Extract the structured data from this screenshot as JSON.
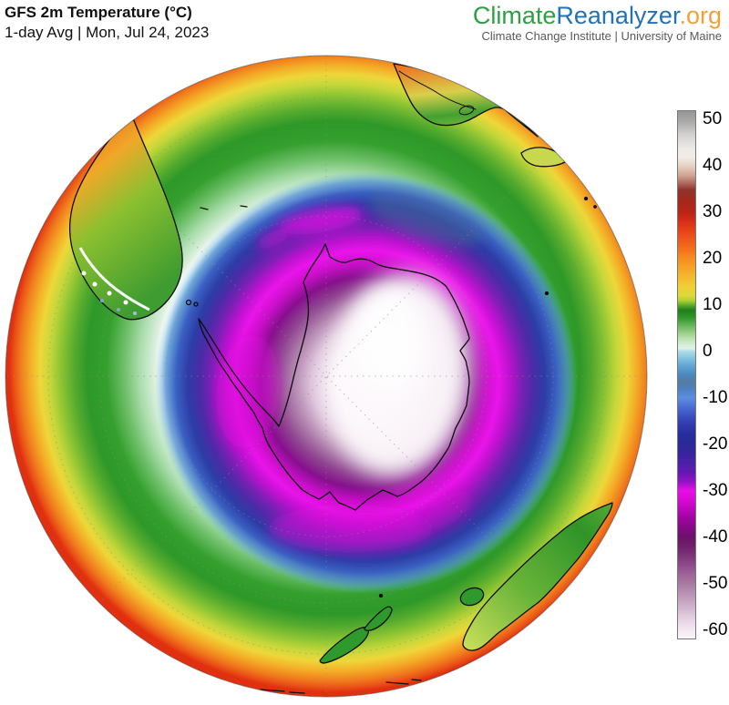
{
  "header": {
    "title": "GFS 2m Temperature (°C)",
    "subtitle": "1-day Avg | Mon, Jul 24, 2023"
  },
  "brand": {
    "climate": "Climate",
    "reanalyzer": "Reanalyzer",
    "org": ".org",
    "tagline": "Climate Change Institute | University of Maine",
    "climate_color": "#2f9e44",
    "reanalyzer_color": "#2272b5",
    "org_color": "#f0a23a",
    "tagline_color": "#58595b"
  },
  "colorbar": {
    "ticks": [
      50,
      40,
      30,
      20,
      10,
      0,
      -10,
      -20,
      -30,
      -40,
      -50,
      -60
    ],
    "top_value": 52,
    "bottom_value": -62,
    "gradient": [
      {
        "v": 52,
        "c": "#969696"
      },
      {
        "v": 50,
        "c": "#a8a6a6"
      },
      {
        "v": 47,
        "c": "#d2d0ce"
      },
      {
        "v": 44,
        "c": "#eceae6"
      },
      {
        "v": 42,
        "c": "#f2ece6"
      },
      {
        "v": 40,
        "c": "#e6cfc0"
      },
      {
        "v": 38,
        "c": "#cda092"
      },
      {
        "v": 36,
        "c": "#a65a50"
      },
      {
        "v": 35,
        "c": "#8e352b"
      },
      {
        "v": 33,
        "c": "#a02a1c"
      },
      {
        "v": 30,
        "c": "#bb2416"
      },
      {
        "v": 28,
        "c": "#d93016"
      },
      {
        "v": 25,
        "c": "#ee4f1a"
      },
      {
        "v": 22,
        "c": "#f4721c"
      },
      {
        "v": 20,
        "c": "#f68e20"
      },
      {
        "v": 17,
        "c": "#f5b02b"
      },
      {
        "v": 14,
        "c": "#f0cf36"
      },
      {
        "v": 12,
        "c": "#dcd93b"
      },
      {
        "v": 11,
        "c": "#accf33"
      },
      {
        "v": 10,
        "c": "#5aa82a"
      },
      {
        "v": 9,
        "c": "#1e7f1c"
      },
      {
        "v": 7.5,
        "c": "#2e9428"
      },
      {
        "v": 6,
        "c": "#5cb04e"
      },
      {
        "v": 4.5,
        "c": "#8cc97c"
      },
      {
        "v": 3,
        "c": "#b8dfaa"
      },
      {
        "v": 1.5,
        "c": "#d6edd4"
      },
      {
        "v": 0.7,
        "c": "#e0f1ea"
      },
      {
        "v": 0,
        "c": "#a9dae8"
      },
      {
        "v": -1.5,
        "c": "#82c2de"
      },
      {
        "v": -3,
        "c": "#62a6d2"
      },
      {
        "v": -5,
        "c": "#4b88c0"
      },
      {
        "v": -6.5,
        "c": "#547c9e"
      },
      {
        "v": -8,
        "c": "#4e7fc2"
      },
      {
        "v": -10,
        "c": "#5b8ede"
      },
      {
        "v": -12,
        "c": "#4a6cd4"
      },
      {
        "v": -14,
        "c": "#3b4ec0"
      },
      {
        "v": -16,
        "c": "#2f38ac"
      },
      {
        "v": -18,
        "c": "#282c9c"
      },
      {
        "v": -20,
        "c": "#2a2a96"
      },
      {
        "v": -22,
        "c": "#38239e"
      },
      {
        "v": -24,
        "c": "#4a21a8"
      },
      {
        "v": -26,
        "c": "#6318b2"
      },
      {
        "v": -28,
        "c": "#9012c4"
      },
      {
        "v": -30,
        "c": "#e80ee8"
      },
      {
        "v": -32,
        "c": "#d808d8"
      },
      {
        "v": -34,
        "c": "#bc06bc"
      },
      {
        "v": -36,
        "c": "#a004a0"
      },
      {
        "v": -38,
        "c": "#860886"
      },
      {
        "v": -40,
        "c": "#6b116b"
      },
      {
        "v": -42,
        "c": "#6f1f6a"
      },
      {
        "v": -44,
        "c": "#7d337a"
      },
      {
        "v": -46,
        "c": "#8d4a88"
      },
      {
        "v": -48,
        "c": "#9d6297"
      },
      {
        "v": -50,
        "c": "#a878a2"
      },
      {
        "v": -52,
        "c": "#b78fb1"
      },
      {
        "v": -54,
        "c": "#c6a5c1"
      },
      {
        "v": -56,
        "c": "#d6bdd2"
      },
      {
        "v": -58,
        "c": "#e6d4e3"
      },
      {
        "v": -60,
        "c": "#f2e7f0"
      },
      {
        "v": -62,
        "c": "#faf4f9"
      }
    ]
  },
  "chart_data": {
    "type": "heatmap",
    "title": "GFS 2m Temperature (°C)",
    "subtitle": "1-day Avg | Mon, Jul 24, 2023",
    "model": "GFS",
    "variable": "2m air temperature",
    "units": "°C",
    "projection": "south polar globe (Antarctica centered)",
    "legend_position": "right vertical colorbar",
    "colorbar_range": [
      -60,
      50
    ],
    "colorbar_ticks": [
      50,
      40,
      30,
      20,
      10,
      0,
      -10,
      -20,
      -30,
      -40,
      -50,
      -60
    ],
    "visible_landmasses": [
      "Antarctica",
      "Antarctic Peninsula",
      "South America (Patagonia)",
      "Southern Africa",
      "Madagascar",
      "Australia",
      "Tasmania",
      "New Zealand"
    ],
    "approx_values": [
      {
        "region": "East Antarctic interior plateau (white core)",
        "temp_c": -58
      },
      {
        "region": "West Antarctic interior",
        "temp_c": -45
      },
      {
        "region": "Antarctic coastal margin (magenta ring)",
        "temp_c": -32
      },
      {
        "region": "Offshore sea-ice zone (navy ring)",
        "temp_c": -20
      },
      {
        "region": "Antarctic Peninsula",
        "temp_c": -12
      },
      {
        "region": "Southern Ocean 0°C contour ring (~60S)",
        "temp_c": 0
      },
      {
        "region": "Mid-latitude Southern Ocean (~45S, green ring)",
        "temp_c": 8
      },
      {
        "region": "Patagonia / Tierra del Fuego with snow shading",
        "temp_c": -2
      },
      {
        "region": "Central Argentina",
        "temp_c": 10
      },
      {
        "region": "Subtropical Pacific near globe limb",
        "temp_c": 22
      },
      {
        "region": "Southern Africa interior",
        "temp_c": 14
      },
      {
        "region": "Southeastern Australia",
        "temp_c": 10
      },
      {
        "region": "New Zealand",
        "temp_c": 8
      },
      {
        "region": "Tropical ocean at globe limb (red rim)",
        "temp_c": 27
      }
    ]
  }
}
